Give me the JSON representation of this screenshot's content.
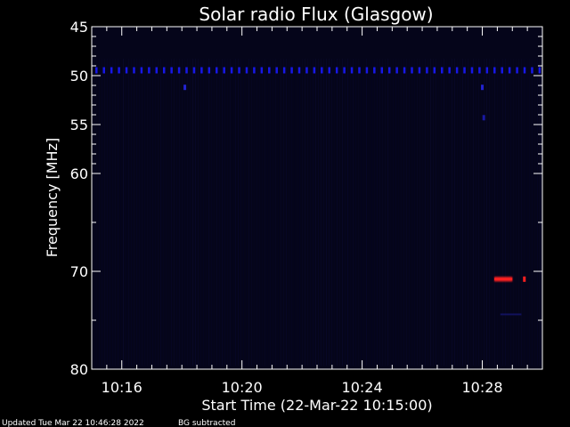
{
  "chart_data": {
    "type": "heatmap",
    "title": "Solar radio Flux (Glasgow)",
    "xlabel": "Start Time (22-Mar-22 10:15:00)",
    "ylabel": "Frequency [MHz]",
    "x_start": "10:15:00",
    "xlim_minutes": [
      0,
      15
    ],
    "ylim": [
      45,
      80
    ],
    "y_inverted": true,
    "x_ticks": [
      {
        "minute": 1,
        "label": "10:16"
      },
      {
        "minute": 5,
        "label": "10:20"
      },
      {
        "minute": 9,
        "label": "10:24"
      },
      {
        "minute": 13,
        "label": "10:28"
      }
    ],
    "y_ticks": [
      {
        "value": 45,
        "label": "45"
      },
      {
        "value": 50,
        "label": "50"
      },
      {
        "value": 55,
        "label": "55"
      },
      {
        "value": 60,
        "label": "60"
      },
      {
        "value": 70,
        "label": "70"
      },
      {
        "value": 80,
        "label": "80"
      }
    ],
    "y_minor_ticks": [
      46,
      47,
      48,
      49,
      51,
      52,
      53,
      54,
      56,
      57,
      58,
      59,
      65,
      75
    ],
    "x_minor_ticks": [
      0.5,
      1.5,
      2,
      2.5,
      3,
      3.5,
      4,
      4.5,
      5.5,
      6,
      6.5,
      7,
      7.5,
      8,
      8.5,
      9.5,
      10,
      10.5,
      11,
      11.5,
      12,
      12.5,
      13.5,
      14,
      14.5
    ],
    "background_color": "#05051a",
    "features": [
      {
        "kind": "dashed-band",
        "freq": 49.5,
        "minute_start": 0.15,
        "minute_end": 14.95,
        "spacing_minutes": 0.25,
        "color": "#1a1aff",
        "intensity": 0.9
      },
      {
        "kind": "spot",
        "freq": 51.2,
        "minute": 3.1,
        "color": "#2a2aff",
        "intensity": 0.8
      },
      {
        "kind": "spot",
        "freq": 51.2,
        "minute": 13.0,
        "color": "#2a2aff",
        "intensity": 0.8
      },
      {
        "kind": "spot",
        "freq": 54.3,
        "minute": 13.05,
        "color": "#2222dd",
        "intensity": 0.7
      },
      {
        "kind": "burst",
        "freq": 70.8,
        "minute_start": 13.4,
        "minute_end": 14.0,
        "color": "#ff2020",
        "intensity": 1.0
      },
      {
        "kind": "spot",
        "freq": 70.8,
        "minute": 14.4,
        "color": "#ff2020",
        "intensity": 1.0
      },
      {
        "kind": "faint-band",
        "freq": 74.4,
        "minute_start": 13.6,
        "minute_end": 14.3,
        "color": "#1a1a88",
        "intensity": 0.6
      }
    ]
  },
  "footer": {
    "updated": "Updated Tue Mar 22 10:46:28 2022",
    "note": "BG subtracted"
  }
}
